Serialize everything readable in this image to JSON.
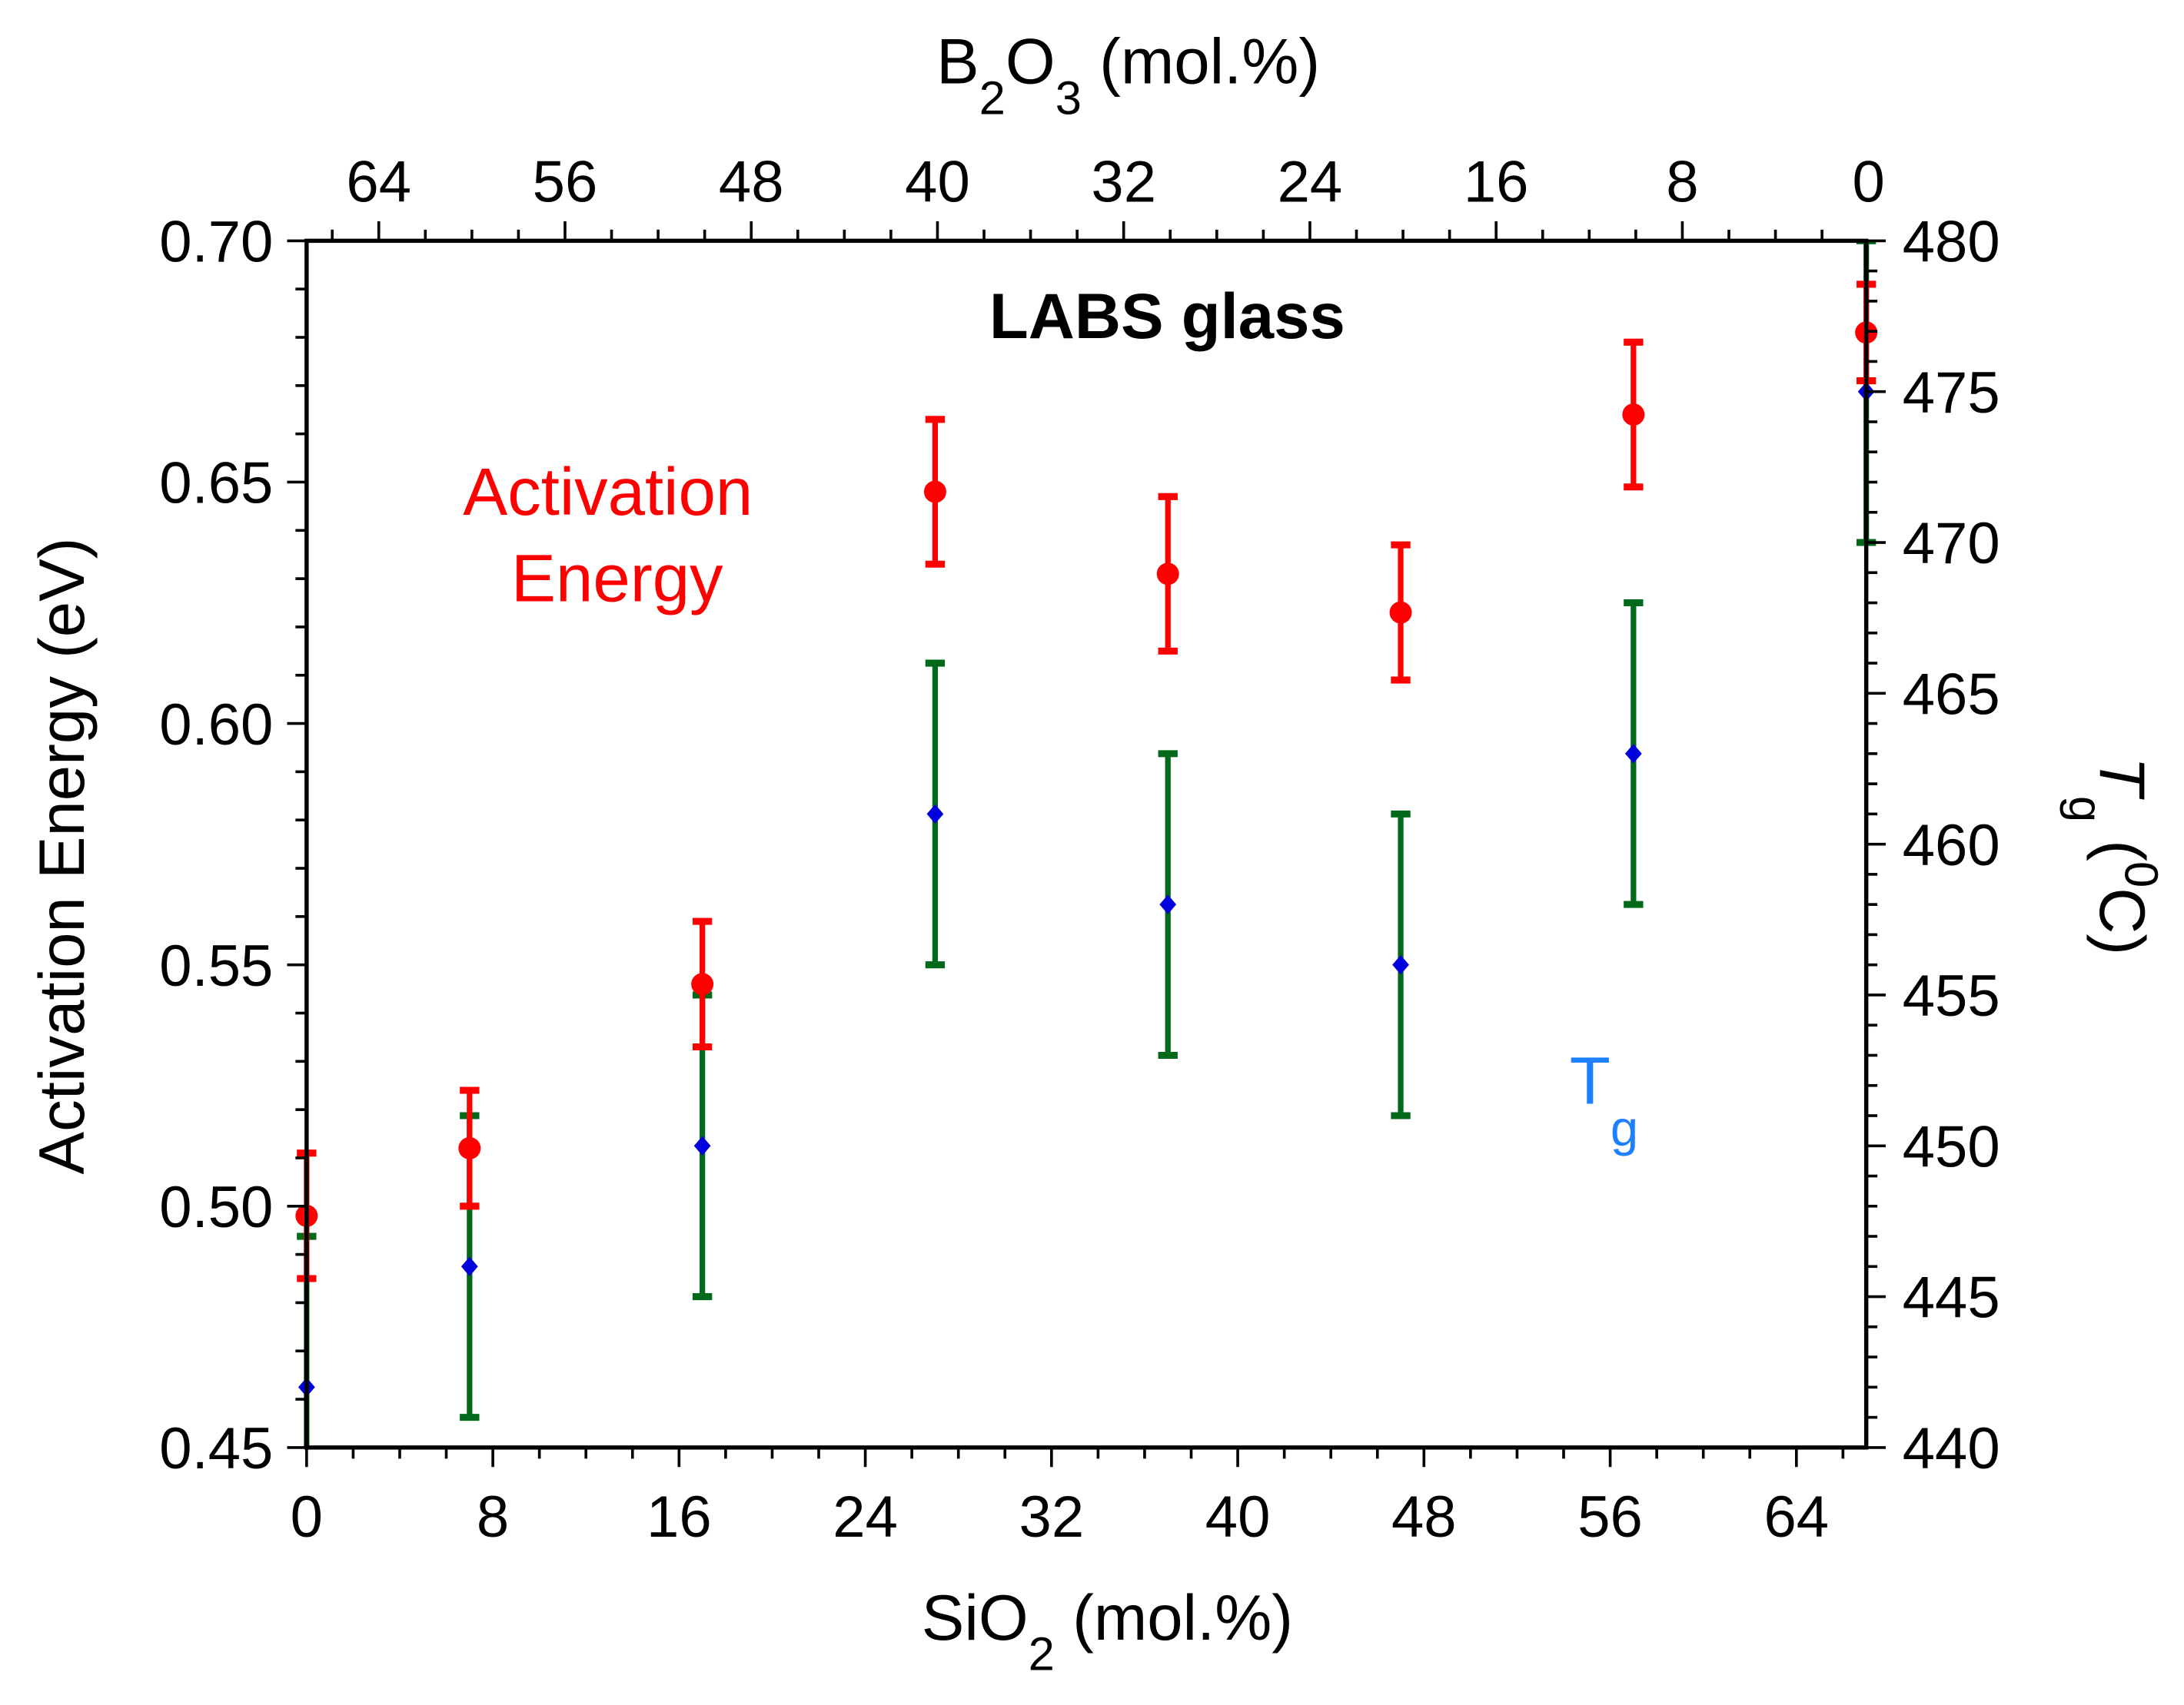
{
  "chart_data": {
    "type": "scatter",
    "title": "LABS glass",
    "xlabel": "SiO",
    "xlabel_sub": "2",
    "xlabel_suffix": " (mol.%)",
    "top_xlabel": "B",
    "top_xlabel_sub1": "2",
    "top_xlabel_mid": "O",
    "top_xlabel_sub2": "3",
    "top_xlabel_suffix": " (mol.%)",
    "ylabel": "Activation Energy (eV)",
    "y2label": "T",
    "y2label_sub": "g",
    "y2label_suffix": " (",
    "y2label_sup": "0",
    "y2label_end": "C)",
    "xlim": [
      0,
      67
    ],
    "ylim": [
      0.45,
      0.7
    ],
    "y2lim": [
      440,
      480
    ],
    "x_ticks": [
      "0",
      "8",
      "16",
      "24",
      "32",
      "40",
      "48",
      "56",
      "64"
    ],
    "top_x_ticks": [
      "64",
      "56",
      "48",
      "40",
      "32",
      "24",
      "16",
      "8",
      "0"
    ],
    "y_ticks": [
      "0.45",
      "0.50",
      "0.55",
      "0.60",
      "0.65",
      "0.70"
    ],
    "y2_ticks": [
      "440",
      "445",
      "450",
      "455",
      "460",
      "465",
      "470",
      "475",
      "480"
    ],
    "grid": false,
    "series": [
      {
        "name": "Activation Energy",
        "axis": "left",
        "color": "#ff0000",
        "marker": "circle",
        "x": [
          0,
          7,
          17,
          27,
          37,
          47,
          57,
          67
        ],
        "y": [
          0.498,
          0.512,
          0.546,
          0.648,
          0.631,
          0.623,
          0.664,
          0.681
        ],
        "err": [
          0.013,
          0.012,
          0.013,
          0.015,
          0.016,
          0.014,
          0.015,
          0.01
        ]
      },
      {
        "name": "Tg",
        "axis": "right",
        "color": "#0000dd",
        "err_color": "#006a1a",
        "marker": "diamond",
        "x": [
          0,
          7,
          17,
          27,
          37,
          47,
          57,
          67
        ],
        "y": [
          442,
          446,
          450,
          461,
          458,
          456,
          463,
          475
        ],
        "err": [
          5,
          5,
          5,
          5,
          5,
          5,
          5,
          5
        ]
      }
    ],
    "annotations": {
      "ae_line1": "Activation",
      "ae_line2": "Energy",
      "tg_main": "T",
      "tg_sub": "g"
    }
  }
}
